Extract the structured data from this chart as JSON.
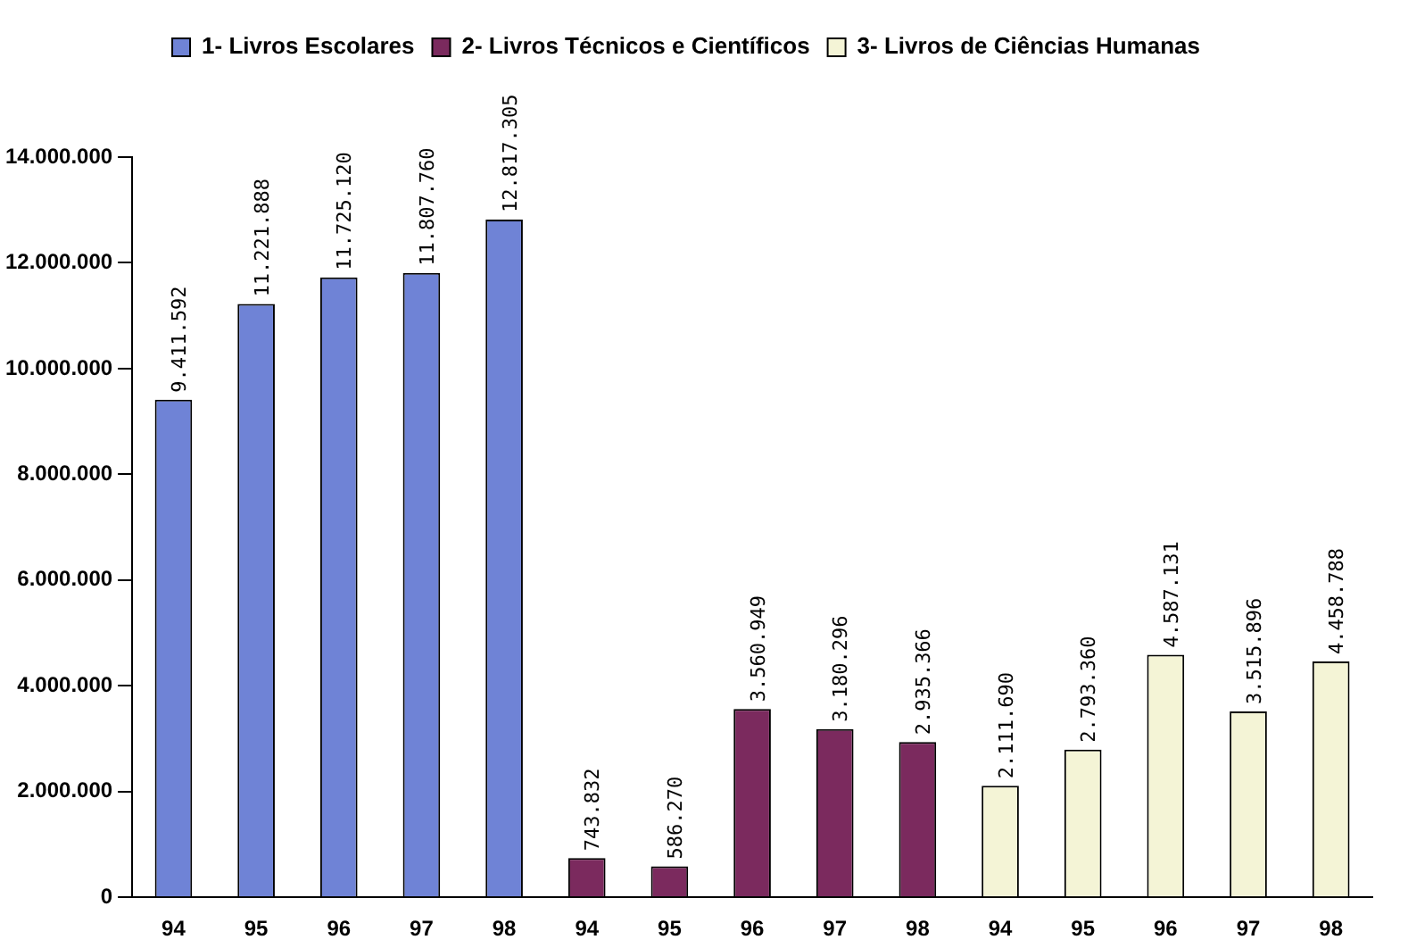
{
  "chart_data": {
    "type": "bar",
    "categories": [
      "94",
      "95",
      "96",
      "97",
      "98",
      "94",
      "95",
      "96",
      "97",
      "98",
      "94",
      "95",
      "96",
      "97",
      "98"
    ],
    "series": [
      {
        "name": "1- Livros Escolares",
        "color": "#6f83d6",
        "values": [
          9411592,
          11221888,
          11725120,
          11807760,
          12817305,
          null,
          null,
          null,
          null,
          null,
          null,
          null,
          null,
          null,
          null
        ],
        "value_labels": [
          "9.411.592",
          "11.221.888",
          "11.725.120",
          "11.807.760",
          "12.817.305",
          null,
          null,
          null,
          null,
          null,
          null,
          null,
          null,
          null,
          null
        ]
      },
      {
        "name": "2- Livros Técnicos e Científicos",
        "color": "#7b2a5e",
        "values": [
          null,
          null,
          null,
          null,
          null,
          743832,
          586270,
          3560949,
          3180296,
          2935366,
          null,
          null,
          null,
          null,
          null
        ],
        "value_labels": [
          null,
          null,
          null,
          null,
          null,
          "743.832",
          "586.270",
          "3.560.949",
          "3.180.296",
          "2.935.366",
          null,
          null,
          null,
          null,
          null
        ]
      },
      {
        "name": "3- Livros de Ciências Humanas",
        "color": "#f4f4d6",
        "values": [
          null,
          null,
          null,
          null,
          null,
          null,
          null,
          null,
          null,
          null,
          2111690,
          2793360,
          4587131,
          3515896,
          4458788
        ],
        "value_labels": [
          null,
          null,
          null,
          null,
          null,
          null,
          null,
          null,
          null,
          null,
          "2.111.690",
          "2.793.360",
          "4.587.131",
          "3.515.896",
          "4.458.788"
        ]
      }
    ],
    "ylim": [
      0,
      14000000
    ],
    "yticks": [
      {
        "value": 0,
        "label": "0"
      },
      {
        "value": 2000000,
        "label": "2.000.000"
      },
      {
        "value": 4000000,
        "label": "4.000.000"
      },
      {
        "value": 6000000,
        "label": "6.000.000"
      },
      {
        "value": 8000000,
        "label": "8.000.000"
      },
      {
        "value": 10000000,
        "label": "10.000.000"
      },
      {
        "value": 12000000,
        "label": "12.000.000"
      },
      {
        "value": 14000000,
        "label": "14.000.000"
      }
    ],
    "grid": false,
    "legend": "top"
  }
}
